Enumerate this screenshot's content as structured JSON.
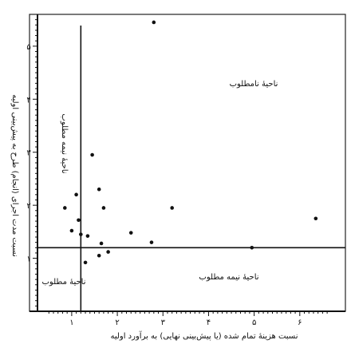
{
  "chart_data": {
    "type": "scatter",
    "title": "",
    "xlabel": "نسبت هزینهٔ تمام شده (یا پیش‌بینی نهایی) به برآورد اولیه",
    "ylabel": "نسبت مدت اجرای (انجام) طرح به پیش‌بینی اولیه",
    "xlim": [
      0.25,
      7.0
    ],
    "ylim": [
      0.0,
      5.6
    ],
    "x_ticks": [
      "۱",
      "۲",
      "۳",
      "۴",
      "۵",
      "۶"
    ],
    "y_ticks": [
      "۱",
      "۲",
      "۳",
      "۴",
      "۵"
    ],
    "reference_lines": {
      "x": 1.2,
      "y": 1.2
    },
    "regions": {
      "top_right": "ناحیهٔ نامطلوب",
      "top_left": "ناحیهٔ نیمه مطلوب",
      "bottom_left": "ناحیهٔ مطلوب",
      "bottom_right": "ناحیهٔ نیمه مطلوب"
    },
    "grid": false,
    "points": [
      {
        "x": 2.8,
        "y": 5.45
      },
      {
        "x": 1.45,
        "y": 2.95
      },
      {
        "x": 1.6,
        "y": 2.3
      },
      {
        "x": 1.1,
        "y": 2.2
      },
      {
        "x": 1.7,
        "y": 1.95
      },
      {
        "x": 3.2,
        "y": 1.95
      },
      {
        "x": 0.85,
        "y": 1.95
      },
      {
        "x": 1.15,
        "y": 1.72
      },
      {
        "x": 1.0,
        "y": 1.52
      },
      {
        "x": 1.2,
        "y": 1.45
      },
      {
        "x": 1.35,
        "y": 1.42
      },
      {
        "x": 2.3,
        "y": 1.48
      },
      {
        "x": 2.75,
        "y": 1.3
      },
      {
        "x": 1.65,
        "y": 1.28
      },
      {
        "x": 1.8,
        "y": 1.12
      },
      {
        "x": 1.6,
        "y": 1.05
      },
      {
        "x": 1.3,
        "y": 0.92
      },
      {
        "x": 6.35,
        "y": 1.75
      },
      {
        "x": 4.95,
        "y": 1.2
      }
    ]
  }
}
